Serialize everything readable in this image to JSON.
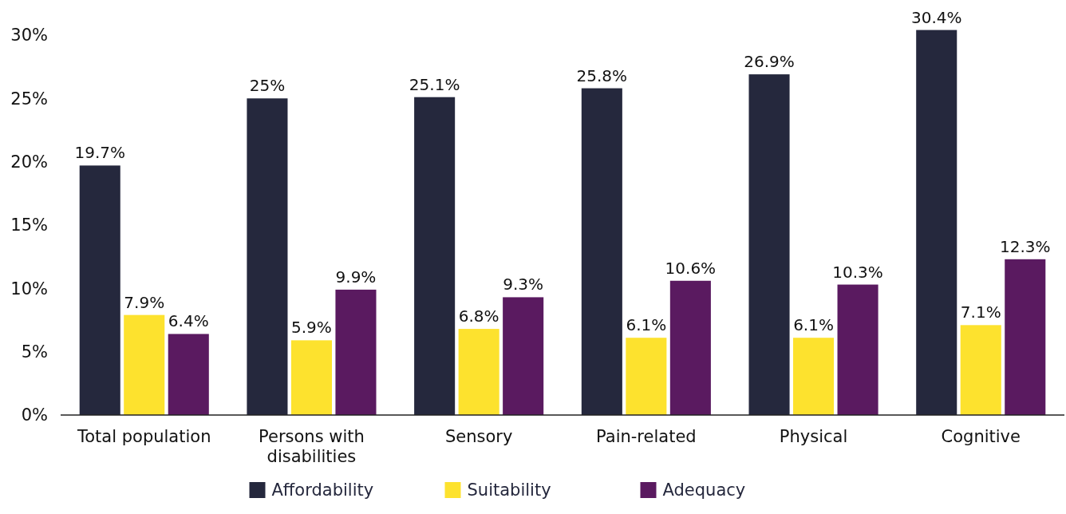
{
  "chart_data": {
    "type": "bar",
    "categories": [
      "Total population",
      "Persons with disabilities",
      "Sensory",
      "Pain-related",
      "Physical",
      "Cognitive"
    ],
    "series": [
      {
        "name": "Affordability",
        "color": "#25283d",
        "values": [
          19.7,
          25,
          25.1,
          25.8,
          26.9,
          30.4
        ],
        "value_labels": [
          "19.7%",
          "25%",
          "25.1%",
          "25.8%",
          "26.9%",
          "30.4%"
        ]
      },
      {
        "name": "Suitability",
        "color": "#fde22e",
        "values": [
          7.9,
          5.9,
          6.8,
          6.1,
          6.1,
          7.1
        ],
        "value_labels": [
          "7.9%",
          "5.9%",
          "6.8%",
          "6.1%",
          "6.1%",
          "7.1%"
        ]
      },
      {
        "name": "Adequacy",
        "color": "#5a1a60",
        "values": [
          6.4,
          9.9,
          9.3,
          10.6,
          10.3,
          12.3
        ],
        "value_labels": [
          "6.4%",
          "9.9%",
          "9.3%",
          "10.6%",
          "10.3%",
          "12.3%"
        ]
      }
    ],
    "ylim": [
      0,
      30.5
    ],
    "yticks": [
      {
        "value": 0,
        "label": "0%"
      },
      {
        "value": 5,
        "label": "5%"
      },
      {
        "value": 10,
        "label": "10%"
      },
      {
        "value": 15,
        "label": "15%"
      },
      {
        "value": 20,
        "label": "20%"
      },
      {
        "value": 25,
        "label": "25%"
      },
      {
        "value": 30,
        "label": "30%"
      }
    ],
    "grid": false,
    "legend": "bottom"
  }
}
